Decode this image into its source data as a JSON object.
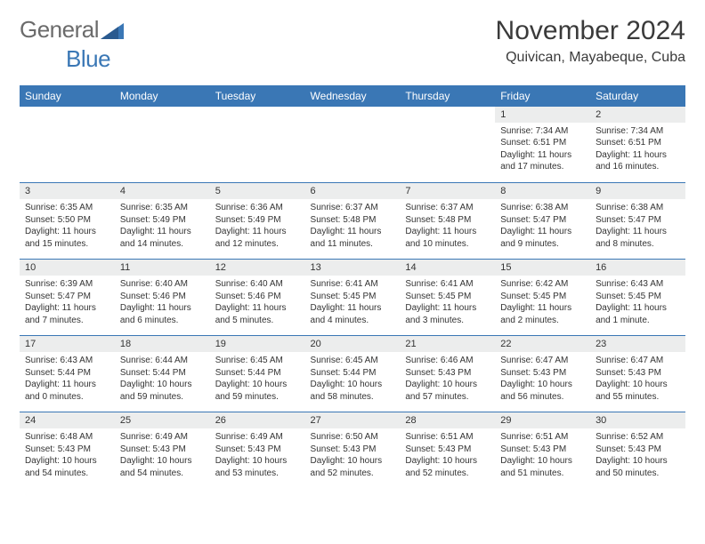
{
  "brand": {
    "name1": "General",
    "name2": "Blue"
  },
  "title": "November 2024",
  "location": "Quivican, Mayabeque, Cuba",
  "colors": {
    "header_bg": "#3a77b5",
    "header_text": "#ffffff",
    "daynum_bg": "#eceded",
    "border": "#3a77b5",
    "text": "#333333"
  },
  "weekdays": [
    "Sunday",
    "Monday",
    "Tuesday",
    "Wednesday",
    "Thursday",
    "Friday",
    "Saturday"
  ],
  "first_weekday_index": 5,
  "days": [
    {
      "n": 1,
      "sunrise": "7:34 AM",
      "sunset": "6:51 PM",
      "daylight": "11 hours and 17 minutes."
    },
    {
      "n": 2,
      "sunrise": "7:34 AM",
      "sunset": "6:51 PM",
      "daylight": "11 hours and 16 minutes."
    },
    {
      "n": 3,
      "sunrise": "6:35 AM",
      "sunset": "5:50 PM",
      "daylight": "11 hours and 15 minutes."
    },
    {
      "n": 4,
      "sunrise": "6:35 AM",
      "sunset": "5:49 PM",
      "daylight": "11 hours and 14 minutes."
    },
    {
      "n": 5,
      "sunrise": "6:36 AM",
      "sunset": "5:49 PM",
      "daylight": "11 hours and 12 minutes."
    },
    {
      "n": 6,
      "sunrise": "6:37 AM",
      "sunset": "5:48 PM",
      "daylight": "11 hours and 11 minutes."
    },
    {
      "n": 7,
      "sunrise": "6:37 AM",
      "sunset": "5:48 PM",
      "daylight": "11 hours and 10 minutes."
    },
    {
      "n": 8,
      "sunrise": "6:38 AM",
      "sunset": "5:47 PM",
      "daylight": "11 hours and 9 minutes."
    },
    {
      "n": 9,
      "sunrise": "6:38 AM",
      "sunset": "5:47 PM",
      "daylight": "11 hours and 8 minutes."
    },
    {
      "n": 10,
      "sunrise": "6:39 AM",
      "sunset": "5:47 PM",
      "daylight": "11 hours and 7 minutes."
    },
    {
      "n": 11,
      "sunrise": "6:40 AM",
      "sunset": "5:46 PM",
      "daylight": "11 hours and 6 minutes."
    },
    {
      "n": 12,
      "sunrise": "6:40 AM",
      "sunset": "5:46 PM",
      "daylight": "11 hours and 5 minutes."
    },
    {
      "n": 13,
      "sunrise": "6:41 AM",
      "sunset": "5:45 PM",
      "daylight": "11 hours and 4 minutes."
    },
    {
      "n": 14,
      "sunrise": "6:41 AM",
      "sunset": "5:45 PM",
      "daylight": "11 hours and 3 minutes."
    },
    {
      "n": 15,
      "sunrise": "6:42 AM",
      "sunset": "5:45 PM",
      "daylight": "11 hours and 2 minutes."
    },
    {
      "n": 16,
      "sunrise": "6:43 AM",
      "sunset": "5:45 PM",
      "daylight": "11 hours and 1 minute."
    },
    {
      "n": 17,
      "sunrise": "6:43 AM",
      "sunset": "5:44 PM",
      "daylight": "11 hours and 0 minutes."
    },
    {
      "n": 18,
      "sunrise": "6:44 AM",
      "sunset": "5:44 PM",
      "daylight": "10 hours and 59 minutes."
    },
    {
      "n": 19,
      "sunrise": "6:45 AM",
      "sunset": "5:44 PM",
      "daylight": "10 hours and 59 minutes."
    },
    {
      "n": 20,
      "sunrise": "6:45 AM",
      "sunset": "5:44 PM",
      "daylight": "10 hours and 58 minutes."
    },
    {
      "n": 21,
      "sunrise": "6:46 AM",
      "sunset": "5:43 PM",
      "daylight": "10 hours and 57 minutes."
    },
    {
      "n": 22,
      "sunrise": "6:47 AM",
      "sunset": "5:43 PM",
      "daylight": "10 hours and 56 minutes."
    },
    {
      "n": 23,
      "sunrise": "6:47 AM",
      "sunset": "5:43 PM",
      "daylight": "10 hours and 55 minutes."
    },
    {
      "n": 24,
      "sunrise": "6:48 AM",
      "sunset": "5:43 PM",
      "daylight": "10 hours and 54 minutes."
    },
    {
      "n": 25,
      "sunrise": "6:49 AM",
      "sunset": "5:43 PM",
      "daylight": "10 hours and 54 minutes."
    },
    {
      "n": 26,
      "sunrise": "6:49 AM",
      "sunset": "5:43 PM",
      "daylight": "10 hours and 53 minutes."
    },
    {
      "n": 27,
      "sunrise": "6:50 AM",
      "sunset": "5:43 PM",
      "daylight": "10 hours and 52 minutes."
    },
    {
      "n": 28,
      "sunrise": "6:51 AM",
      "sunset": "5:43 PM",
      "daylight": "10 hours and 52 minutes."
    },
    {
      "n": 29,
      "sunrise": "6:51 AM",
      "sunset": "5:43 PM",
      "daylight": "10 hours and 51 minutes."
    },
    {
      "n": 30,
      "sunrise": "6:52 AM",
      "sunset": "5:43 PM",
      "daylight": "10 hours and 50 minutes."
    }
  ],
  "labels": {
    "sunrise": "Sunrise:",
    "sunset": "Sunset:",
    "daylight": "Daylight:"
  }
}
